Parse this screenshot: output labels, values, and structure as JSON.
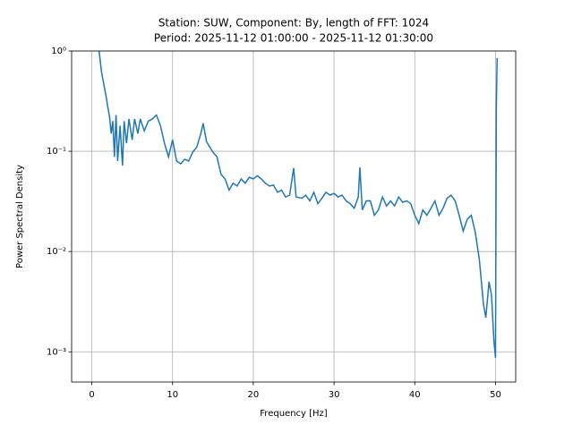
{
  "chart_data": {
    "type": "line",
    "title": "Station: SUW, Component: By, length of FFT: 1024",
    "subtitle": "Period: 2025-11-12 01:00:00 - 2025-11-12 01:30:00",
    "x_label": "Frequency [Hz]",
    "y_label": "Power Spectral Density",
    "xlim": [
      -2.5,
      52.5
    ],
    "ylim": [
      0.0005,
      1
    ],
    "xticks": [
      0,
      10,
      20,
      30,
      40,
      50
    ],
    "yticks": [
      {
        "value": 0.001,
        "label": "10⁻³"
      },
      {
        "value": 0.01,
        "label": "10⁻²"
      },
      {
        "value": 0.1,
        "label": "10⁻¹"
      },
      {
        "value": 1,
        "label": "10⁰"
      }
    ],
    "log_y": true,
    "grid": true,
    "series": [
      {
        "color": "#1f77b4",
        "x": [
          0.9,
          1.2,
          1.5,
          1.8,
          2.0,
          2.2,
          2.4,
          2.6,
          2.8,
          3.0,
          3.2,
          3.5,
          3.8,
          4.0,
          4.3,
          4.6,
          5.0,
          5.3,
          5.7,
          6.0,
          6.5,
          7.0,
          7.5,
          8.0,
          8.5,
          9.0,
          9.5,
          10.0,
          10.5,
          11.0,
          11.5,
          12.0,
          12.5,
          13.0,
          13.5,
          13.8,
          14.2,
          15.0,
          15.5,
          16.0,
          16.5,
          17.0,
          17.5,
          18.0,
          18.5,
          19.0,
          19.5,
          20.0,
          20.5,
          21.0,
          21.5,
          22.0,
          22.5,
          23.0,
          23.5,
          24.0,
          24.5,
          25.0,
          25.3,
          26.0,
          26.5,
          27.0,
          27.5,
          28.0,
          28.5,
          29.0,
          29.5,
          30.0,
          30.5,
          31.0,
          31.5,
          32.0,
          32.5,
          33.0,
          33.2,
          33.5,
          34.0,
          34.5,
          35.0,
          35.5,
          36.0,
          36.5,
          37.0,
          37.5,
          38.0,
          38.5,
          39.0,
          39.5,
          40.0,
          40.5,
          41.0,
          41.5,
          42.0,
          42.5,
          43.0,
          43.5,
          44.0,
          44.5,
          45.0,
          45.5,
          46.0,
          46.5,
          47.0,
          47.5,
          48.0,
          48.5,
          48.8,
          49.2,
          49.5,
          49.8,
          50.0,
          50.1,
          50.2
        ],
        "values": [
          1.0,
          0.62,
          0.46,
          0.34,
          0.27,
          0.22,
          0.15,
          0.2,
          0.088,
          0.23,
          0.08,
          0.18,
          0.072,
          0.2,
          0.12,
          0.21,
          0.13,
          0.21,
          0.15,
          0.21,
          0.16,
          0.2,
          0.21,
          0.23,
          0.18,
          0.12,
          0.088,
          0.13,
          0.08,
          0.075,
          0.083,
          0.08,
          0.098,
          0.11,
          0.15,
          0.19,
          0.125,
          0.098,
          0.088,
          0.059,
          0.053,
          0.041,
          0.048,
          0.045,
          0.053,
          0.048,
          0.055,
          0.053,
          0.057,
          0.053,
          0.048,
          0.045,
          0.046,
          0.039,
          0.041,
          0.035,
          0.0365,
          0.068,
          0.035,
          0.034,
          0.0365,
          0.032,
          0.039,
          0.03,
          0.034,
          0.039,
          0.0365,
          0.038,
          0.035,
          0.0365,
          0.032,
          0.03,
          0.027,
          0.035,
          0.069,
          0.026,
          0.032,
          0.032,
          0.023,
          0.026,
          0.035,
          0.0285,
          0.032,
          0.0285,
          0.035,
          0.031,
          0.032,
          0.03,
          0.023,
          0.019,
          0.026,
          0.023,
          0.027,
          0.032,
          0.023,
          0.027,
          0.034,
          0.0365,
          0.032,
          0.023,
          0.016,
          0.021,
          0.023,
          0.0154,
          0.0083,
          0.003,
          0.0022,
          0.005,
          0.0037,
          0.0013,
          0.00087,
          0.27,
          0.85
        ]
      }
    ]
  }
}
